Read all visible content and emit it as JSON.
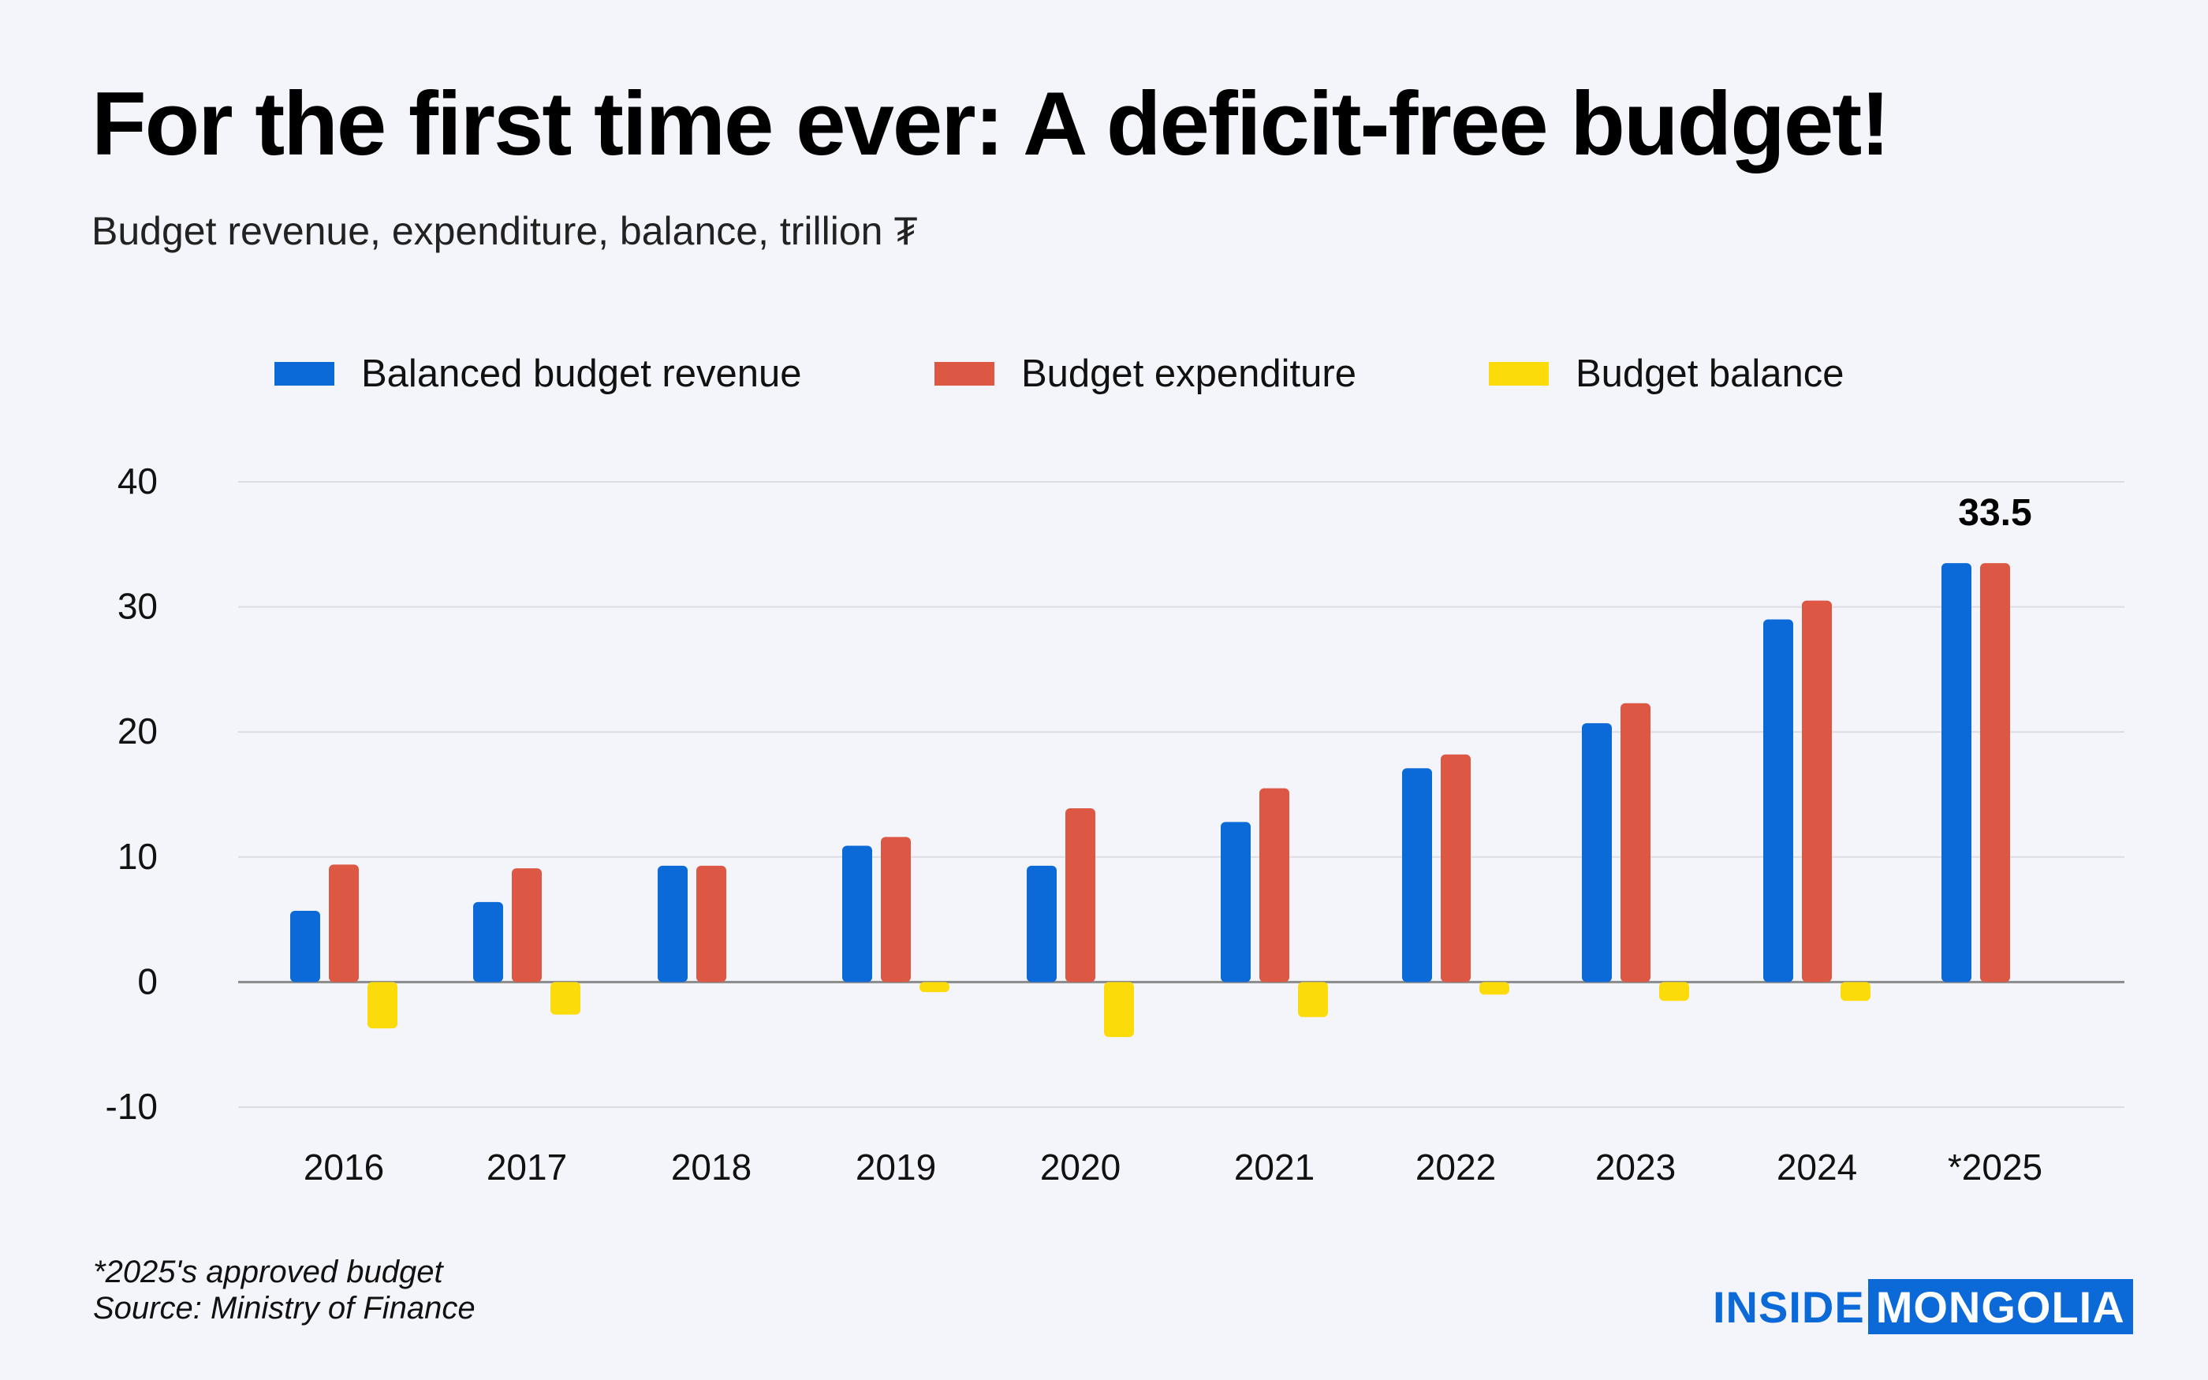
{
  "title": "For the first time ever: A deficit-free budget!",
  "subtitle": "Budget revenue, expenditure, balance, trillion ₮",
  "legend": [
    {
      "label": "Balanced budget revenue",
      "color": "#0b6ad8"
    },
    {
      "label": "Budget expenditure",
      "color": "#dd5844"
    },
    {
      "label": "Budget balance",
      "color": "#fbdc0a"
    }
  ],
  "footnote": {
    "line1": "*2025's approved budget",
    "line2": "Source: Ministry of Finance"
  },
  "logo": {
    "left": "INSIDE",
    "right": "MONGOLIA"
  },
  "chart_data": {
    "type": "bar",
    "categories": [
      "2016",
      "2017",
      "2018",
      "2019",
      "2020",
      "2021",
      "2022",
      "2023",
      "2024",
      "*2025"
    ],
    "series": [
      {
        "name": "Balanced budget revenue",
        "color": "#0b6ad8",
        "values": [
          5.7,
          6.4,
          9.3,
          10.9,
          9.3,
          12.8,
          17.1,
          20.7,
          29.0,
          33.5
        ]
      },
      {
        "name": "Budget expenditure",
        "color": "#dd5844",
        "values": [
          9.4,
          9.1,
          9.3,
          11.6,
          13.9,
          15.5,
          18.2,
          22.3,
          30.5,
          33.5
        ]
      },
      {
        "name": "Budget balance",
        "color": "#fbdc0a",
        "values": [
          -3.7,
          -2.6,
          0,
          -0.8,
          -4.4,
          -2.8,
          -1.0,
          -1.5,
          -1.5,
          0
        ]
      }
    ],
    "ylim": [
      -10,
      40
    ],
    "yticks": [
      40,
      30,
      20,
      10,
      0,
      -10
    ],
    "grid": true,
    "legend_position": "top",
    "annotations": [
      {
        "category": "*2025",
        "text": "33.5"
      }
    ]
  }
}
